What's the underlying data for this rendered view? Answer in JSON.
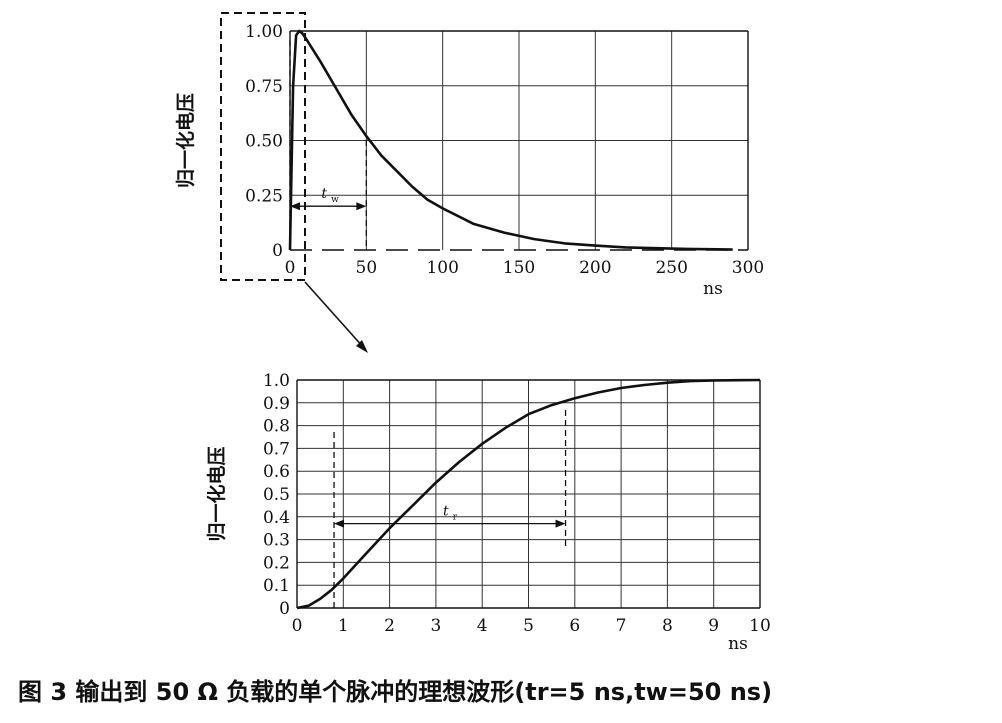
{
  "caption": "图 3   输出到 50 Ω 负载的单个脉冲的理想波形(tr=5 ns,tw=50 ns)",
  "chart_data": [
    {
      "type": "line",
      "ylabel": "归一化电压",
      "xunit": "ns",
      "xlim": [
        0,
        300
      ],
      "ylim": [
        0,
        1.0
      ],
      "xticks": [
        0,
        50,
        100,
        150,
        200,
        250,
        300
      ],
      "yticks": [
        "0",
        "0.25",
        "0.50",
        "0.75",
        "1.00"
      ],
      "yticks_values": [
        0,
        0.25,
        0.5,
        0.75,
        1.0
      ],
      "grid": true,
      "annotation": {
        "label": "t",
        "sub": "w",
        "x_from": 0,
        "x_to": 50,
        "y": 0.2
      },
      "series": [
        {
          "x": [
            0,
            2,
            4,
            6,
            8,
            10,
            20,
            30,
            40,
            50,
            60,
            70,
            80,
            90,
            100,
            120,
            140,
            160,
            180,
            200,
            220,
            240,
            260,
            280,
            290
          ],
          "y": [
            0,
            0.75,
            0.98,
            1.0,
            0.99,
            0.97,
            0.86,
            0.74,
            0.62,
            0.52,
            0.43,
            0.36,
            0.29,
            0.23,
            0.19,
            0.12,
            0.08,
            0.05,
            0.03,
            0.02,
            0.012,
            0.008,
            0.005,
            0.003,
            0.002
          ]
        }
      ]
    },
    {
      "type": "line",
      "ylabel": "归一化电压",
      "xunit": "ns",
      "xlim": [
        0,
        10
      ],
      "ylim": [
        0,
        1.0
      ],
      "xticks": [
        0,
        1,
        2,
        3,
        4,
        5,
        6,
        7,
        8,
        9,
        10
      ],
      "yticks": [
        "0",
        "0.1",
        "0.2",
        "0.3",
        "0.4",
        "0.5",
        "0.6",
        "0.7",
        "0.8",
        "0.9",
        "1.0"
      ],
      "yticks_values": [
        0,
        0.1,
        0.2,
        0.3,
        0.4,
        0.5,
        0.6,
        0.7,
        0.8,
        0.9,
        1.0
      ],
      "grid": true,
      "annotation": {
        "label": "t",
        "sub": "r",
        "x_from": 0.8,
        "x_to": 5.8,
        "y": 0.37
      },
      "series": [
        {
          "x": [
            0,
            0.25,
            0.5,
            0.75,
            1,
            1.5,
            2,
            2.5,
            3,
            3.5,
            4,
            4.5,
            5,
            5.5,
            6,
            6.5,
            7,
            7.5,
            8,
            8.5,
            9,
            9.5,
            10
          ],
          "y": [
            0,
            0.01,
            0.04,
            0.08,
            0.13,
            0.24,
            0.35,
            0.45,
            0.55,
            0.64,
            0.72,
            0.79,
            0.85,
            0.89,
            0.92,
            0.945,
            0.965,
            0.978,
            0.988,
            0.995,
            0.998,
            0.999,
            1.0
          ]
        }
      ]
    }
  ]
}
